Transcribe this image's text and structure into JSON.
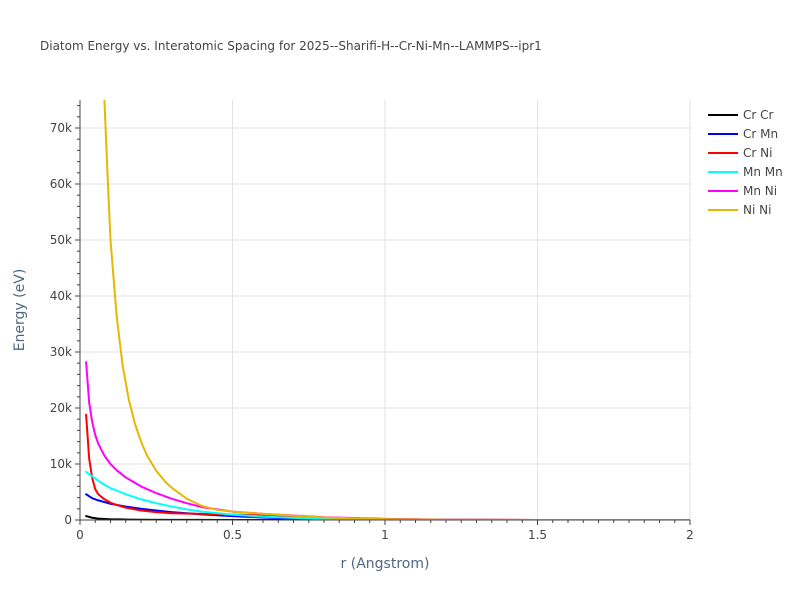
{
  "chart_data": {
    "type": "line",
    "title": "Diatom Energy vs. Interatomic Spacing for 2025--Sharifi-H--Cr-Ni-Mn--LAMMPS--ipr1",
    "xlabel": "r (Angstrom)",
    "ylabel": "Energy (eV)",
    "xlim": [
      0,
      2
    ],
    "ylim": [
      0,
      75000
    ],
    "x_ticks": [
      0,
      0.5,
      1,
      1.5,
      2
    ],
    "x_tick_labels": [
      "0",
      "0.5",
      "1",
      "1.5",
      "2"
    ],
    "y_ticks": [
      0,
      10000,
      20000,
      30000,
      40000,
      50000,
      60000,
      70000
    ],
    "y_tick_labels": [
      "0",
      "10k",
      "20k",
      "30k",
      "40k",
      "50k",
      "60k",
      "70k"
    ],
    "grid": true,
    "legend_position": "top-right",
    "series": [
      {
        "name": "Cr Cr",
        "color": "#000000",
        "x": [
          0.02,
          0.04,
          0.06,
          0.08,
          0.1,
          0.15,
          0.2,
          0.3,
          0.4,
          0.5,
          0.7,
          1.0,
          1.5,
          2.0
        ],
        "y": [
          700,
          400,
          250,
          180,
          130,
          80,
          50,
          25,
          12,
          6,
          2,
          0,
          0,
          0
        ]
      },
      {
        "name": "Cr Mn",
        "color": "#0000ff",
        "x": [
          0.02,
          0.04,
          0.06,
          0.08,
          0.1,
          0.15,
          0.2,
          0.25,
          0.3,
          0.4,
          0.5,
          0.6,
          0.7,
          0.8,
          1.0,
          1.2,
          1.5,
          2.0
        ],
        "y": [
          4600,
          3900,
          3500,
          3200,
          2900,
          2400,
          2000,
          1700,
          1400,
          1000,
          700,
          450,
          300,
          180,
          60,
          20,
          0,
          0
        ]
      },
      {
        "name": "Cr Ni",
        "color": "#ff0000",
        "x": [
          0.02,
          0.03,
          0.04,
          0.05,
          0.06,
          0.08,
          0.1,
          0.12,
          0.15,
          0.2,
          0.25,
          0.3,
          0.4,
          0.5,
          0.6,
          0.7,
          0.8,
          1.0,
          1.2,
          1.5,
          2.0
        ],
        "y": [
          18800,
          11000,
          7500,
          5500,
          4600,
          3700,
          3100,
          2700,
          2200,
          1700,
          1400,
          1200,
          1100,
          950,
          800,
          600,
          400,
          150,
          50,
          10,
          0
        ]
      },
      {
        "name": "Mn Mn",
        "color": "#00ffff",
        "x": [
          0.02,
          0.04,
          0.06,
          0.08,
          0.1,
          0.15,
          0.2,
          0.25,
          0.3,
          0.35,
          0.4,
          0.5,
          0.6,
          0.7,
          0.8,
          1.0,
          1.2,
          1.5,
          2.0
        ],
        "y": [
          8600,
          7800,
          7000,
          6300,
          5700,
          4600,
          3700,
          3000,
          2400,
          1900,
          1500,
          950,
          600,
          380,
          230,
          80,
          25,
          0,
          0
        ]
      },
      {
        "name": "Mn Ni",
        "color": "#ff00ff",
        "x": [
          0.02,
          0.03,
          0.04,
          0.05,
          0.06,
          0.08,
          0.1,
          0.12,
          0.15,
          0.2,
          0.25,
          0.3,
          0.35,
          0.4,
          0.5,
          0.6,
          0.7,
          0.8,
          1.0,
          1.2,
          1.5,
          2.0
        ],
        "y": [
          28200,
          21000,
          17500,
          15200,
          13600,
          11500,
          10000,
          8900,
          7600,
          6000,
          4800,
          3800,
          3000,
          2300,
          1500,
          1100,
          800,
          500,
          200,
          60,
          10,
          0
        ]
      },
      {
        "name": "Ni Ni",
        "color": "#e6b800",
        "x": [
          0.08,
          0.09,
          0.1,
          0.12,
          0.14,
          0.16,
          0.18,
          0.2,
          0.22,
          0.25,
          0.28,
          0.3,
          0.35,
          0.4,
          0.45,
          0.5,
          0.6,
          0.7,
          0.8,
          1.0,
          1.2,
          1.5,
          2.0
        ],
        "y": [
          75000,
          62000,
          50000,
          36500,
          27500,
          21500,
          17200,
          14000,
          11500,
          8800,
          6800,
          5800,
          3800,
          2500,
          1800,
          1500,
          1100,
          750,
          450,
          150,
          40,
          5,
          0
        ]
      }
    ]
  }
}
